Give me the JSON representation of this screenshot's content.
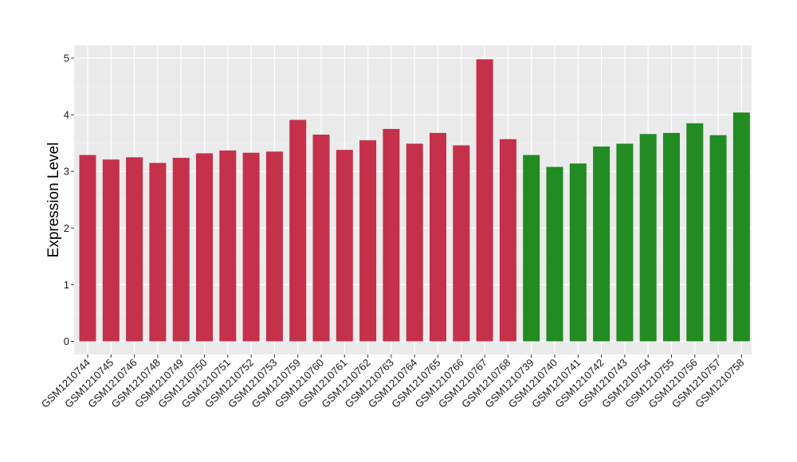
{
  "chart_data": {
    "type": "bar",
    "title": "",
    "xlabel": "",
    "ylabel": "Expression Level",
    "ylim": [
      0,
      5.2
    ],
    "yticks": [
      0,
      1,
      2,
      3,
      4,
      5
    ],
    "grid": true,
    "legend": "none",
    "panel_color": "#ebebeb",
    "categories": [
      "GSM1210744",
      "GSM1210745",
      "GSM1210746",
      "GSM1210748",
      "GSM1210749",
      "GSM1210750",
      "GSM1210751",
      "GSM1210752",
      "GSM1210753",
      "GSM1210759",
      "GSM1210760",
      "GSM1210761",
      "GSM1210762",
      "GSM1210763",
      "GSM1210764",
      "GSM1210765",
      "GSM1210766",
      "GSM1210767",
      "GSM1210768",
      "GSM1210739",
      "GSM1210740",
      "GSM1210741",
      "GSM1210742",
      "GSM1210743",
      "GSM1210754",
      "GSM1210755",
      "GSM1210756",
      "GSM1210757",
      "GSM1210758"
    ],
    "values": [
      3.29,
      3.21,
      3.25,
      3.15,
      3.24,
      3.32,
      3.37,
      3.33,
      3.35,
      3.91,
      3.65,
      3.38,
      3.55,
      3.75,
      3.49,
      3.68,
      3.46,
      4.98,
      3.57,
      3.29,
      3.08,
      3.14,
      3.44,
      3.49,
      3.66,
      3.68,
      3.85,
      3.64,
      4.04
    ],
    "colors": [
      "#c5304a",
      "#c5304a",
      "#c5304a",
      "#c5304a",
      "#c5304a",
      "#c5304a",
      "#c5304a",
      "#c5304a",
      "#c5304a",
      "#c5304a",
      "#c5304a",
      "#c5304a",
      "#c5304a",
      "#c5304a",
      "#c5304a",
      "#c5304a",
      "#c5304a",
      "#c5304a",
      "#c5304a",
      "#228b22",
      "#228b22",
      "#228b22",
      "#228b22",
      "#228b22",
      "#228b22",
      "#228b22",
      "#228b22",
      "#228b22",
      "#228b22"
    ]
  }
}
